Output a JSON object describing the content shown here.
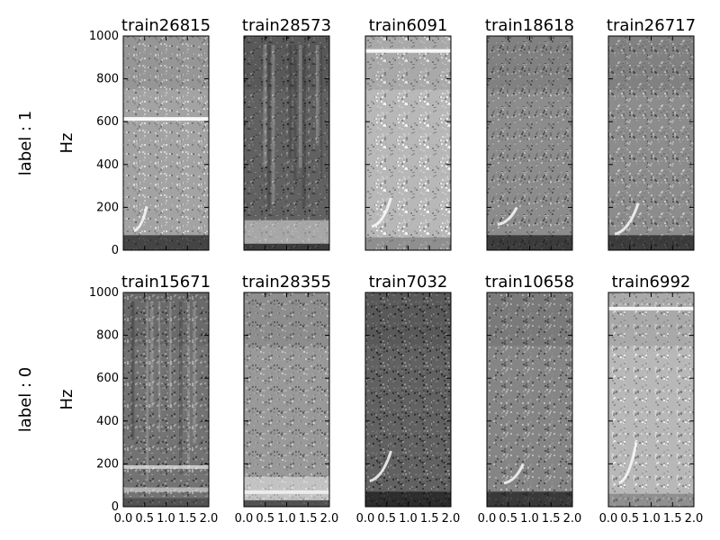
{
  "chart_data": {
    "type": "heatmap",
    "colormap": "grayscale",
    "grid": false,
    "ylim": [
      0,
      1000
    ],
    "xlim": [
      0,
      2.0
    ],
    "yticks": [
      "0",
      "200",
      "400",
      "600",
      "800",
      "1000"
    ],
    "xticks": [
      "0.0",
      "0.5",
      "1.0",
      "1.5",
      "2.0"
    ],
    "ylabel": "Hz",
    "rows": [
      {
        "label": "label : 1",
        "panels": [
          {
            "title": "train26815",
            "tone_hz": 613,
            "tone_strength": 0.95,
            "sweep": [
              [
                0.25,
                90
              ],
              [
                0.55,
                205
              ]
            ],
            "brightness": 0.64,
            "low_band": "dark"
          },
          {
            "title": "train28573",
            "vertical_streaks": true,
            "brightness": 0.38,
            "low_band": "bright"
          },
          {
            "title": "train6091",
            "tone_hz": 930,
            "tone_strength": 0.9,
            "sweep": [
              [
                0.15,
                110
              ],
              [
                0.6,
                245
              ]
            ],
            "brightness": 0.72,
            "low_band": "faint"
          },
          {
            "title": "train18618",
            "sweep": [
              [
                0.25,
                120
              ],
              [
                0.7,
                200
              ]
            ],
            "brightness": 0.55,
            "low_band": "dark"
          },
          {
            "title": "train26717",
            "sweep": [
              [
                0.15,
                75
              ],
              [
                0.7,
                220
              ]
            ],
            "brightness": 0.55,
            "low_band": "dark"
          }
        ]
      },
      {
        "label": "label : 0",
        "panels": [
          {
            "title": "train15671",
            "tone_hz": 185,
            "tone_strength": 0.6,
            "vertical_streaks": true,
            "brightness": 0.45,
            "low_band": "banded"
          },
          {
            "title": "train28355",
            "tone_hz": 68,
            "tone_strength": 0.7,
            "brightness": 0.6,
            "low_band": "bright"
          },
          {
            "title": "train7032",
            "sweep": [
              [
                0.1,
                120
              ],
              [
                0.6,
                260
              ]
            ],
            "brightness": 0.38,
            "low_band": "dark"
          },
          {
            "title": "train10658",
            "sweep": [
              [
                0.4,
                110
              ],
              [
                0.85,
                200
              ]
            ],
            "brightness": 0.52,
            "low_band": "dark"
          },
          {
            "title": "train6992",
            "tone_hz": 925,
            "tone_strength": 0.9,
            "sweep": [
              [
                0.25,
                110
              ],
              [
                0.65,
                300
              ]
            ],
            "brightness": 0.72,
            "low_band": "faint"
          }
        ]
      }
    ]
  }
}
